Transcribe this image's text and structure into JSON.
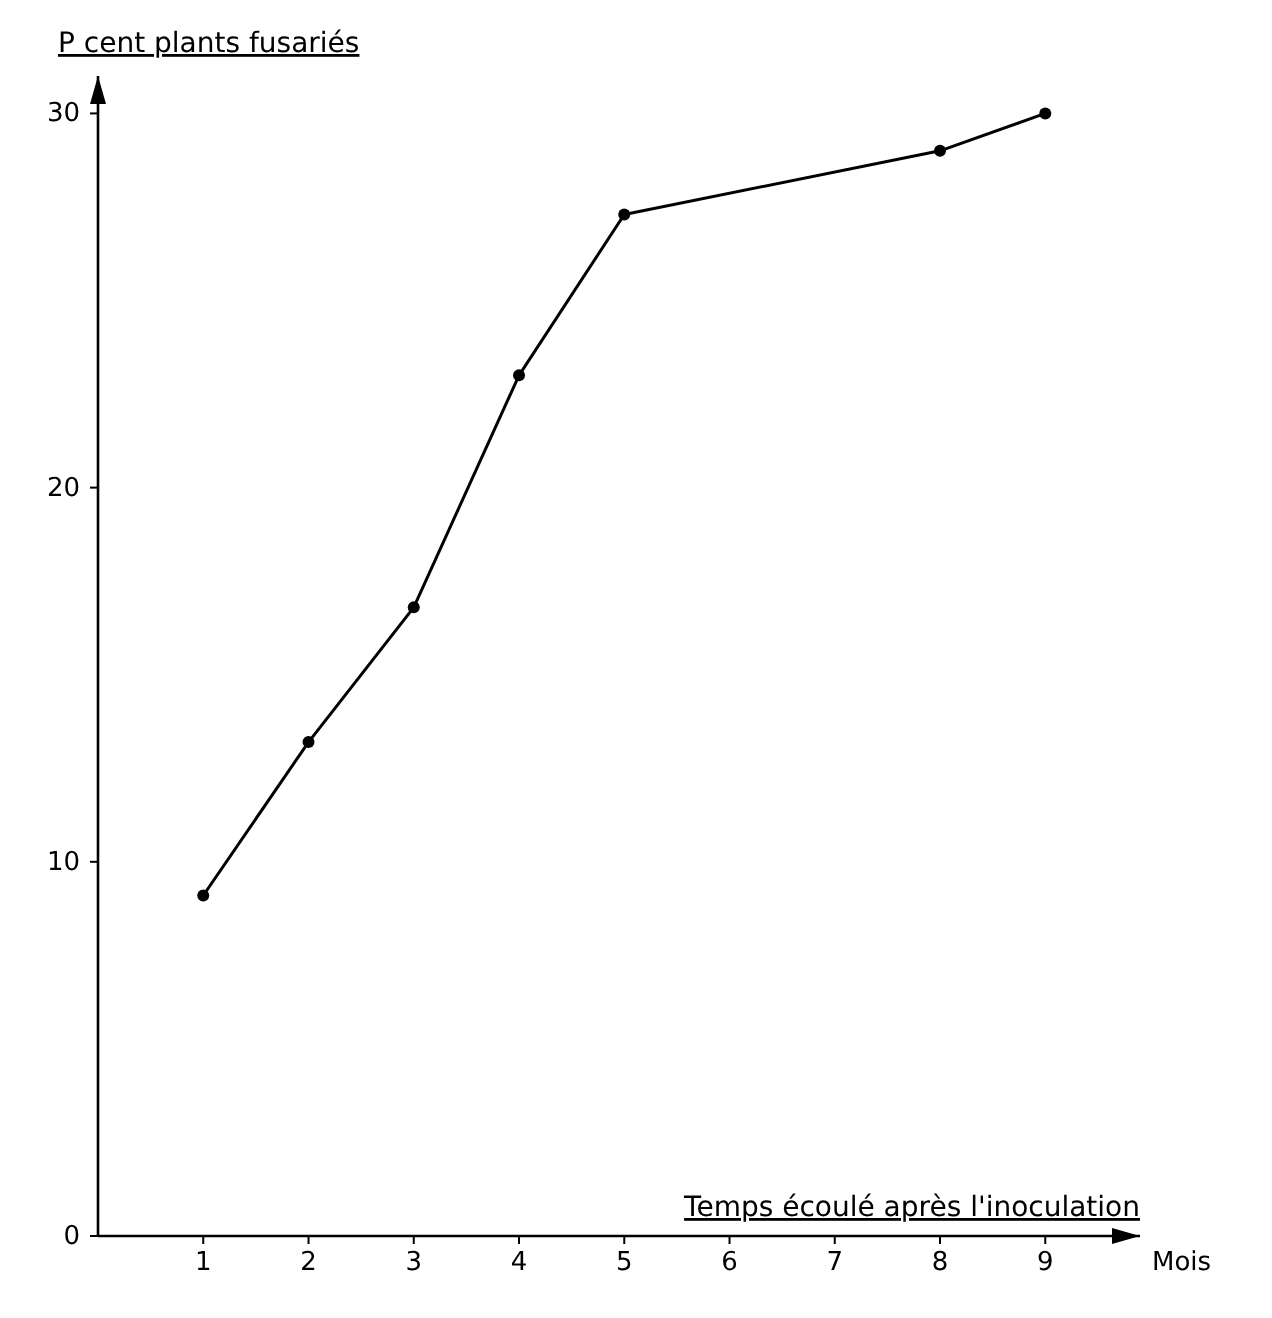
{
  "chart_data": {
    "type": "line",
    "ylabel": "P cent plants fusariés",
    "xlabel": "Temps écoulé après l'inoculation",
    "annotations": [
      "Mois"
    ],
    "x": [
      1,
      2,
      3,
      4,
      5,
      8,
      9
    ],
    "series": [
      {
        "color": "#000000",
        "values": [
          9.1,
          13.2,
          16.8,
          23.0,
          27.3,
          29.0,
          30.0
        ]
      }
    ],
    "xlim": [
      0,
      9.9
    ],
    "xticks": [
      1,
      2,
      3,
      4,
      5,
      6,
      7,
      8,
      9
    ],
    "ylim": [
      0,
      31
    ],
    "yticks": [
      0,
      10,
      20,
      30
    ],
    "grid": false,
    "marker": "circle",
    "line_style": "solid"
  }
}
